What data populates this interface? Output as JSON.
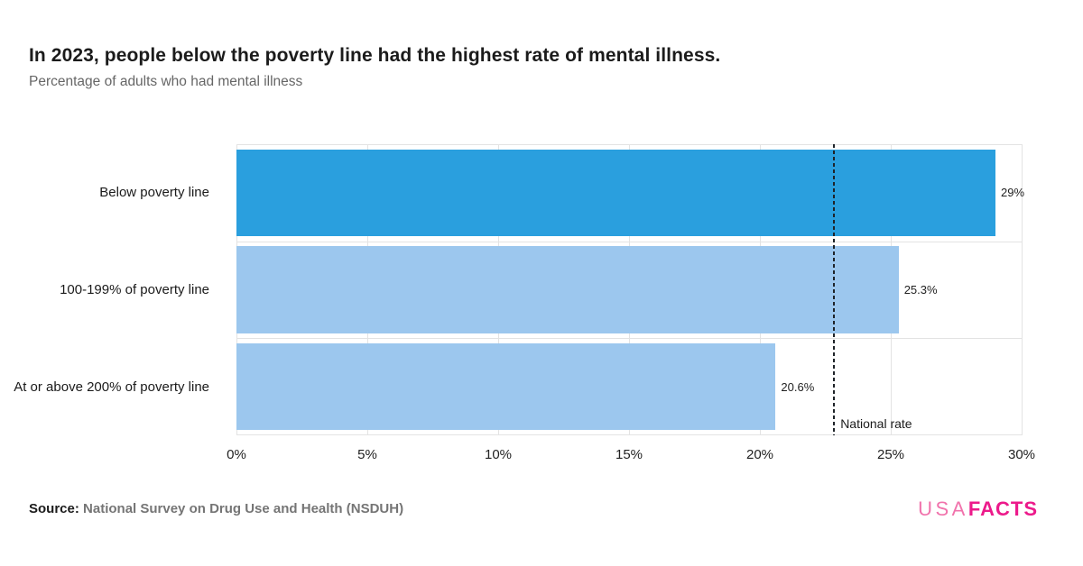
{
  "header": {
    "title": "In 2023, people below the poverty line had the highest rate of mental illness.",
    "subtitle": "Percentage of adults who had mental illness"
  },
  "footer": {
    "source_label": "Source:",
    "source_text": "National Survey on Drug Use and Health (NSDUH)",
    "logo_part1": "USA",
    "logo_part2": "FACTS"
  },
  "colors": {
    "bar_highlight": "#2a9fde",
    "bar_regular": "#9cc7ee",
    "gridline": "#e3e3e3",
    "reference_line": "#1f2429",
    "title_text": "#1b1b1b",
    "subtitle_text": "#666666",
    "logo_usa": "#f173ac",
    "logo_facts": "#ec1a8b"
  },
  "chart_data": {
    "type": "bar",
    "orientation": "horizontal",
    "title": "In 2023, people below the poverty line had the highest rate of mental illness.",
    "subtitle": "Percentage of adults who had mental illness",
    "categories": [
      "Below poverty line",
      "100-199% of poverty line",
      "At or above 200% of poverty line"
    ],
    "values": [
      29,
      25.3,
      20.6
    ],
    "value_labels": [
      "29%",
      "25.3%",
      "20.6%"
    ],
    "bar_colors": [
      "#2a9fde",
      "#9cc7ee",
      "#9cc7ee"
    ],
    "xlabel": "",
    "ylabel": "",
    "xlim": [
      0,
      30
    ],
    "x_tick_values": [
      0,
      5,
      10,
      15,
      20,
      25,
      30
    ],
    "x_tick_labels": [
      "0%",
      "5%",
      "10%",
      "15%",
      "20%",
      "25%",
      "30%"
    ],
    "grid": "vertical",
    "legend": "none",
    "reference_line": {
      "label": "National rate",
      "value": 22.8
    }
  }
}
